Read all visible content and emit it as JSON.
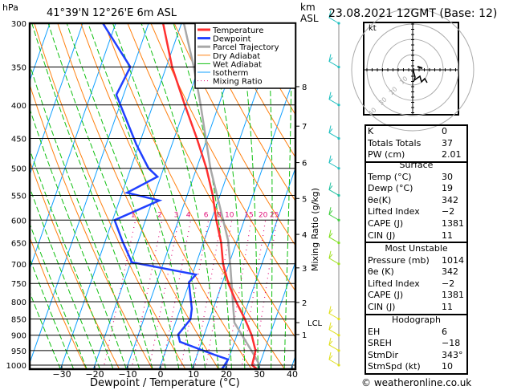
{
  "header": {
    "hpa": "hPa",
    "location": "41°39'N 12°26'E 6m ASL",
    "km": "km",
    "asl": "ASL",
    "datetime": "23.08.2021 12GMT (Base: 12)"
  },
  "legend": [
    {
      "label": "Temperature",
      "color": "#ff3030"
    },
    {
      "label": "Dewpoint",
      "color": "#2040ff"
    },
    {
      "label": "Parcel Trajectory",
      "color": "#a8a8a8"
    },
    {
      "label": "Dry Adiabat",
      "color": "#ff8010"
    },
    {
      "label": "Wet Adiabat",
      "color": "#10c010"
    },
    {
      "label": "Isotherm",
      "color": "#10a0ff"
    },
    {
      "label": "Mixing Ratio",
      "color": "#e0107a"
    }
  ],
  "chart_data": {
    "type": "line",
    "title": "41°39'N 12°26'E 6m ASL",
    "xlabel": "Dewpoint / Temperature (°C)",
    "ylabel": "hPa",
    "x_ticks": [
      -30,
      -20,
      -10,
      0,
      10,
      20,
      30,
      40
    ],
    "x_tick_labels": [
      "−30",
      "−20",
      "−10",
      "0",
      "10",
      "20",
      "30",
      "40"
    ],
    "pressure_levels": [
      300,
      350,
      400,
      450,
      500,
      550,
      600,
      650,
      700,
      750,
      800,
      850,
      900,
      950,
      1000
    ],
    "ylim": [
      1014,
      300
    ],
    "series": [
      {
        "name": "Temperature",
        "points": [
          [
            1014,
            29.7
          ],
          [
            1000,
            27.8
          ],
          [
            950,
            27.3
          ],
          [
            900,
            24.5
          ],
          [
            850,
            20.7
          ],
          [
            800,
            16.2
          ],
          [
            750,
            11.9
          ],
          [
            700,
            8.2
          ],
          [
            650,
            5.4
          ],
          [
            600,
            1.5
          ],
          [
            550,
            -2.2
          ],
          [
            500,
            -7.0
          ],
          [
            450,
            -13.1
          ],
          [
            400,
            -20.3
          ],
          [
            350,
            -28.2
          ],
          [
            300,
            -35.6
          ]
        ]
      },
      {
        "name": "Dewpoint",
        "points": [
          [
            1014,
            19
          ],
          [
            1006,
            19.3
          ],
          [
            980,
            19.9
          ],
          [
            964,
            15.2
          ],
          [
            921,
            3.4
          ],
          [
            898,
            2.1
          ],
          [
            851,
            4.2
          ],
          [
            820,
            3.5
          ],
          [
            747,
            -0.2
          ],
          [
            727,
            1.1
          ],
          [
            696,
            -19.7
          ],
          [
            645,
            -24.9
          ],
          [
            600,
            -29.4
          ],
          [
            560,
            -17.9
          ],
          [
            545,
            -28.5
          ],
          [
            515,
            -21
          ],
          [
            500,
            -24.6
          ],
          [
            460,
            -30.8
          ],
          [
            386,
            -42.2
          ],
          [
            350,
            -40.9
          ],
          [
            300,
            -53.9
          ]
        ]
      },
      {
        "name": "Parcel Trajectory",
        "points": [
          [
            1000,
            30.1
          ],
          [
            967,
            27.5
          ],
          [
            861,
            17.9
          ],
          [
            802,
            15.3
          ],
          [
            708,
            10.8
          ],
          [
            645,
            7.3
          ],
          [
            500,
            -5.8
          ],
          [
            400,
            -15.5
          ],
          [
            350,
            -21.6
          ],
          [
            300,
            -29.3
          ]
        ]
      }
    ],
    "background": {
      "isotherms": [
        -100,
        -90,
        -80,
        -70,
        -60,
        -50,
        -40,
        -30,
        -20,
        -10,
        0,
        10,
        20,
        30,
        40
      ],
      "dry_adiabats_K": [
        250,
        260,
        270,
        280,
        290,
        300,
        310,
        320,
        330,
        340,
        350,
        360,
        370,
        380,
        390,
        400,
        410,
        420,
        430,
        440,
        450
      ],
      "wet_adiabats_start_C": [
        -30,
        -26,
        -22,
        -18,
        -14,
        -10,
        -6,
        -2,
        2,
        6,
        10,
        14,
        18,
        22,
        26,
        30,
        34,
        38
      ],
      "mixing_ratios": [
        1,
        2,
        3,
        4,
        6,
        8,
        10,
        15,
        20,
        25
      ],
      "mixing_ratio_labels": [
        "1",
        "2",
        "3",
        "4",
        "6",
        "8",
        "10",
        "15",
        "20",
        "25"
      ]
    },
    "height_km": [
      {
        "label": "8",
        "p": 375
      },
      {
        "label": "7",
        "p": 431
      },
      {
        "label": "6",
        "p": 490
      },
      {
        "label": "5",
        "p": 556
      },
      {
        "label": "4",
        "p": 631
      },
      {
        "label": "3",
        "p": 710
      },
      {
        "label": "2",
        "p": 802
      },
      {
        "label": "1",
        "p": 898
      },
      {
        "label": "LCL",
        "p": 861
      }
    ],
    "mixing_ratio_axis_label": "Mixing Ratio (g/kg)",
    "wind_barbs": [
      {
        "p": 300,
        "color": "#20c0c0"
      },
      {
        "p": 350,
        "color": "#20c0c0"
      },
      {
        "p": 400,
        "color": "#20c0c0"
      },
      {
        "p": 450,
        "color": "#20c0c0"
      },
      {
        "p": 500,
        "color": "#20c0c0"
      },
      {
        "p": 550,
        "color": "#20c0a0"
      },
      {
        "p": 600,
        "color": "#40d040"
      },
      {
        "p": 650,
        "color": "#80e020"
      },
      {
        "p": 700,
        "color": "#a0e020"
      },
      {
        "p": 850,
        "color": "#e0e020"
      },
      {
        "p": 900,
        "color": "#e0e020"
      },
      {
        "p": 950,
        "color": "#e0e020"
      },
      {
        "p": 1000,
        "color": "#e0e020"
      }
    ]
  },
  "hodograph": {
    "unit": "kt",
    "rings": [
      "10",
      "20",
      "30",
      "40"
    ]
  },
  "indices": {
    "basic": [
      {
        "k": "K",
        "v": "0"
      },
      {
        "k": "Totals Totals",
        "v": "37"
      },
      {
        "k": "PW (cm)",
        "v": "2.01"
      }
    ],
    "surface": {
      "title": "Surface",
      "rows": [
        {
          "k": "Temp (°C)",
          "v": "30"
        },
        {
          "k": "Dewp (°C)",
          "v": "19"
        },
        {
          "k": "θe(K)",
          "v": "342"
        },
        {
          "k": "Lifted Index",
          "v": "−2"
        },
        {
          "k": "CAPE (J)",
          "v": "1381"
        },
        {
          "k": "CIN (J)",
          "v": "11"
        }
      ]
    },
    "most_unstable": {
      "title": "Most Unstable",
      "rows": [
        {
          "k": "Pressure (mb)",
          "v": "1014"
        },
        {
          "k": "θe (K)",
          "v": "342"
        },
        {
          "k": "Lifted Index",
          "v": "−2"
        },
        {
          "k": "CAPE (J)",
          "v": "1381"
        },
        {
          "k": "CIN (J)",
          "v": "11"
        }
      ]
    },
    "hodograph": {
      "title": "Hodograph",
      "rows": [
        {
          "k": "EH",
          "v": "6"
        },
        {
          "k": "SREH",
          "v": "−18"
        },
        {
          "k": "StmDir",
          "v": "343°"
        },
        {
          "k": "StmSpd (kt)",
          "v": "10"
        }
      ]
    }
  },
  "footer": "© weatheronline.co.uk"
}
